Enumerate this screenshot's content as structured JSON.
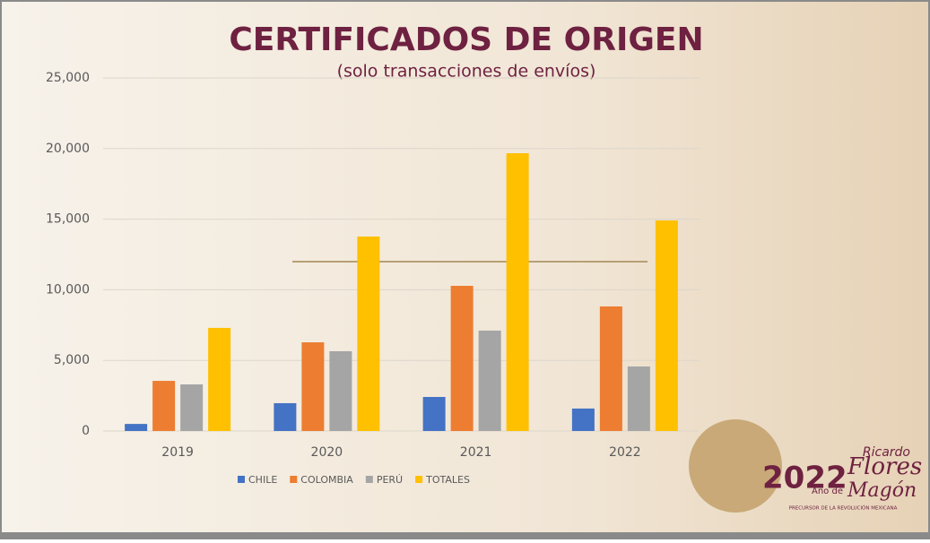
{
  "chart_data": {
    "type": "bar",
    "title": "CERTIFICADOS DE ORIGEN",
    "subtitle": "(solo transacciones de envíos)",
    "categories": [
      "2019",
      "2020",
      "2021",
      "2022"
    ],
    "series": [
      {
        "name": "CHILE",
        "color": "#4472c4",
        "values": [
          500,
          1970,
          2410,
          1590
        ]
      },
      {
        "name": "COLOMBIA",
        "color": "#ed7d31",
        "values": [
          3550,
          6280,
          10280,
          8820
        ]
      },
      {
        "name": "PERÚ",
        "color": "#a5a5a5",
        "values": [
          3300,
          5650,
          7110,
          4570
        ]
      },
      {
        "name": "TOTALES",
        "color": "#ffc000",
        "values": [
          7300,
          13770,
          19670,
          14910
        ]
      }
    ],
    "ylim": [
      0,
      25000
    ],
    "yticks": [
      0,
      {
        "value": 5000,
        "label": "5,000"
      },
      {
        "value": 10000,
        "label": "10,000"
      },
      {
        "value": 15000,
        "label": "15,000"
      },
      {
        "value": 20000,
        "label": "20,000"
      },
      {
        "value": 25000,
        "label": "25,000"
      }
    ],
    "grid": true,
    "legend": "bottom"
  },
  "logo": {
    "top": "Ricardo",
    "year": "2022",
    "name": "Flores",
    "prefix": "Año de",
    "surname": "Magón",
    "tagline": "PRECURSOR DE LA REVOLUCIÓN MEXICANA"
  }
}
